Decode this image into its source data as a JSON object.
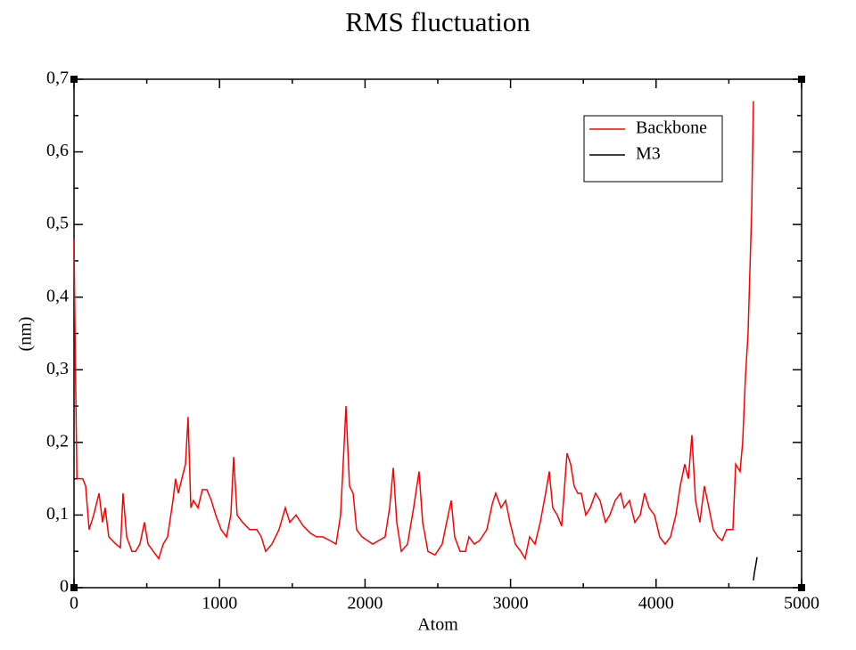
{
  "chart_data": {
    "type": "line",
    "title": "RMS fluctuation",
    "xlabel": "Atom",
    "ylabel": "(nm)",
    "xlim": [
      0,
      5000
    ],
    "xticks": [
      0,
      1000,
      2000,
      3000,
      4000,
      5000
    ],
    "minor_xticks": [
      500,
      1500,
      2500,
      3500,
      4500
    ],
    "ylim": [
      0,
      0.7
    ],
    "yticks": [
      0,
      {
        "value": 0.1,
        "label": "0,1"
      },
      {
        "value": 0.2,
        "label": "0,2"
      },
      {
        "value": 0.3,
        "label": "0,3"
      },
      {
        "value": 0.4,
        "label": "0,4"
      },
      {
        "value": 0.5,
        "label": "0,5"
      },
      {
        "value": 0.6,
        "label": "0,6"
      },
      {
        "value": 0.7,
        "label": "0,7"
      }
    ],
    "minor_yticks": [
      0.05,
      0.15,
      0.25,
      0.35,
      0.45,
      0.55,
      0.65
    ],
    "legend": "upper right",
    "series": [
      {
        "name": "Backbone",
        "color": "#ff0000",
        "x": [
          0,
          10,
          20,
          60,
          80,
          104,
          135,
          172,
          196,
          214,
          239,
          288,
          319,
          337,
          362,
          398,
          423,
          453,
          484,
          509,
          545,
          582,
          613,
          643,
          680,
          698,
          717,
          741,
          766,
          784,
          803,
          821,
          852,
          882,
          913,
          944,
          974,
          1011,
          1048,
          1078,
          1097,
          1121,
          1158,
          1207,
          1256,
          1287,
          1317,
          1360,
          1409,
          1452,
          1483,
          1526,
          1575,
          1624,
          1667,
          1709,
          1758,
          1801,
          1832,
          1857,
          1869,
          1893,
          1918,
          1942,
          1979,
          2016,
          2053,
          2095,
          2138,
          2169,
          2194,
          2218,
          2249,
          2292,
          2334,
          2371,
          2396,
          2432,
          2481,
          2530,
          2592,
          2616,
          2653,
          2690,
          2714,
          2751,
          2788,
          2837,
          2874,
          2898,
          2935,
          2966,
          2996,
          3033,
          3070,
          3100,
          3131,
          3168,
          3204,
          3241,
          3266,
          3290,
          3321,
          3351,
          3388,
          3413,
          3437,
          3462,
          3486,
          3517,
          3548,
          3584,
          3615,
          3652,
          3682,
          3719,
          3756,
          3780,
          3817,
          3854,
          3891,
          3921,
          3952,
          3989,
          4025,
          4062,
          4099,
          4136,
          4166,
          4197,
          4222,
          4246,
          4271,
          4301,
          4332,
          4363,
          4393,
          4424,
          4454,
          4485,
          4528,
          4547,
          4577,
          4595,
          4614,
          4632,
          4657,
          4669
        ],
        "values": [
          0.48,
          0.3,
          0.15,
          0.15,
          0.14,
          0.08,
          0.1,
          0.13,
          0.09,
          0.11,
          0.07,
          0.06,
          0.055,
          0.13,
          0.07,
          0.05,
          0.05,
          0.06,
          0.09,
          0.06,
          0.05,
          0.04,
          0.06,
          0.07,
          0.12,
          0.15,
          0.13,
          0.15,
          0.17,
          0.235,
          0.11,
          0.12,
          0.11,
          0.135,
          0.135,
          0.12,
          0.1,
          0.08,
          0.07,
          0.1,
          0.18,
          0.1,
          0.09,
          0.08,
          0.08,
          0.07,
          0.05,
          0.06,
          0.08,
          0.11,
          0.09,
          0.1,
          0.085,
          0.075,
          0.07,
          0.07,
          0.065,
          0.06,
          0.1,
          0.2,
          0.25,
          0.14,
          0.13,
          0.08,
          0.07,
          0.065,
          0.06,
          0.065,
          0.07,
          0.11,
          0.165,
          0.09,
          0.05,
          0.06,
          0.11,
          0.16,
          0.09,
          0.05,
          0.045,
          0.06,
          0.12,
          0.07,
          0.05,
          0.05,
          0.07,
          0.06,
          0.065,
          0.08,
          0.115,
          0.13,
          0.11,
          0.12,
          0.09,
          0.06,
          0.05,
          0.04,
          0.07,
          0.06,
          0.09,
          0.13,
          0.16,
          0.11,
          0.1,
          0.085,
          0.185,
          0.17,
          0.14,
          0.13,
          0.13,
          0.1,
          0.11,
          0.13,
          0.12,
          0.09,
          0.1,
          0.12,
          0.13,
          0.11,
          0.12,
          0.09,
          0.1,
          0.13,
          0.11,
          0.1,
          0.07,
          0.06,
          0.07,
          0.1,
          0.14,
          0.17,
          0.15,
          0.21,
          0.12,
          0.09,
          0.14,
          0.11,
          0.08,
          0.07,
          0.065,
          0.08,
          0.08,
          0.17,
          0.16,
          0.2,
          0.29,
          0.35,
          0.52,
          0.67
        ]
      },
      {
        "name": "M3",
        "color": "#000000",
        "x": [
          4669,
          4675,
          4684,
          4694
        ],
        "values": [
          0.01,
          0.02,
          0.03,
          0.042
        ]
      }
    ]
  }
}
